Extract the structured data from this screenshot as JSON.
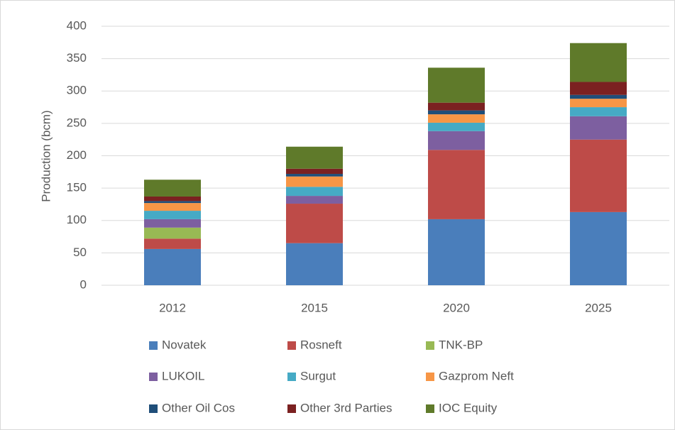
{
  "chart_data": {
    "type": "stacked_bar",
    "y_label": "Production (bcm)",
    "categories": [
      "2012",
      "2015",
      "2020",
      "2025"
    ],
    "series": [
      {
        "name": "Novatek",
        "color": "#4a7ebb",
        "values": [
          56,
          65,
          102,
          113
        ]
      },
      {
        "name": "Rosneft",
        "color": "#be4b48",
        "values": [
          16,
          61,
          107,
          112
        ]
      },
      {
        "name": "TNK-BP",
        "color": "#98b954",
        "values": [
          17,
          0,
          0,
          0
        ]
      },
      {
        "name": "LUKOIL",
        "color": "#7d5fa0",
        "values": [
          13,
          12,
          29,
          36
        ]
      },
      {
        "name": "Surgut",
        "color": "#46aac5",
        "values": [
          13,
          14,
          13,
          14
        ]
      },
      {
        "name": "Gazprom Neft",
        "color": "#f79646",
        "values": [
          12,
          16,
          13,
          13
        ]
      },
      {
        "name": "Other Oil Cos",
        "color": "#1f4e79",
        "values": [
          3,
          4,
          6,
          6
        ]
      },
      {
        "name": "Other 3rd Parties",
        "color": "#7b2121",
        "values": [
          7,
          8,
          12,
          20
        ]
      },
      {
        "name": "IOC Equity",
        "color": "#5f7a2a",
        "values": [
          26,
          34,
          54,
          60
        ]
      }
    ],
    "ylim": [
      0,
      400
    ],
    "yticks": [
      0,
      50,
      100,
      150,
      200,
      250,
      300,
      350,
      400
    ],
    "grid": true
  }
}
